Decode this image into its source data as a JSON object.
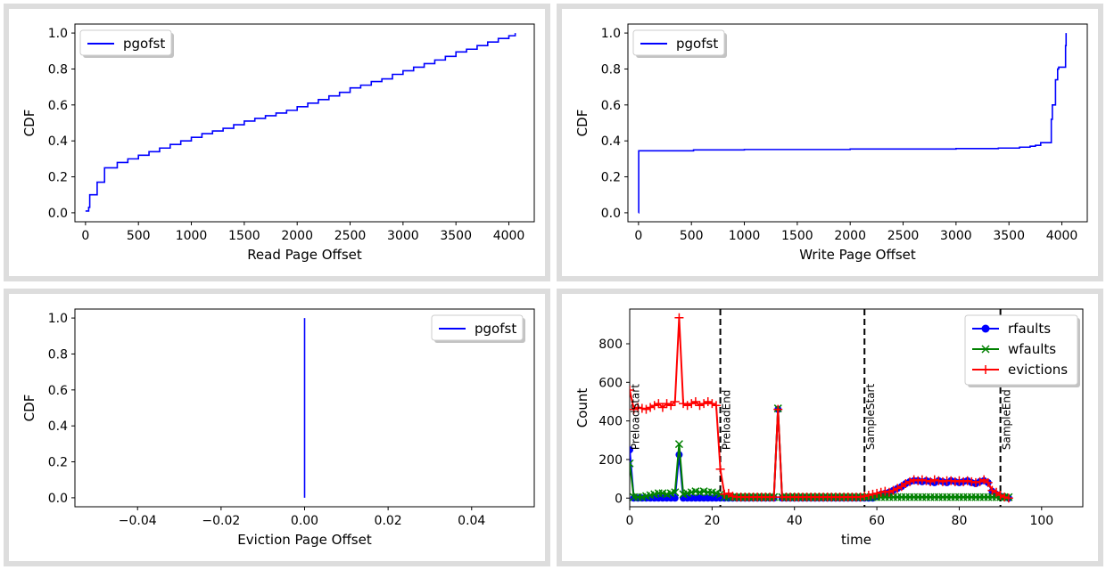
{
  "chart_data": [
    {
      "type": "line",
      "xlabel": "Read Page Offset",
      "ylabel": "CDF",
      "xlim": [
        -100,
        4240
      ],
      "ylim": [
        -0.05,
        1.05
      ],
      "xticks": [
        0,
        500,
        1000,
        1500,
        2000,
        2500,
        3000,
        3500,
        4000
      ],
      "yticks": [
        0.0,
        0.2,
        0.4,
        0.6,
        0.8,
        1.0
      ],
      "grid": false,
      "legend_position": "top-left",
      "series": [
        {
          "name": "pgofst",
          "color": "#0000ff",
          "step": true,
          "x": [
            0,
            30,
            40,
            100,
            110,
            170,
            180,
            300,
            400,
            500,
            600,
            700,
            800,
            900,
            1000,
            1100,
            1200,
            1300,
            1400,
            1500,
            1600,
            1700,
            1800,
            1900,
            2000,
            2100,
            2200,
            2300,
            2400,
            2500,
            2600,
            2700,
            2800,
            2900,
            3000,
            3100,
            3200,
            3300,
            3400,
            3500,
            3600,
            3700,
            3800,
            3900,
            4000,
            4060
          ],
          "y": [
            0.01,
            0.03,
            0.1,
            0.1,
            0.17,
            0.17,
            0.25,
            0.28,
            0.3,
            0.32,
            0.34,
            0.36,
            0.38,
            0.4,
            0.42,
            0.44,
            0.455,
            0.47,
            0.49,
            0.51,
            0.525,
            0.54,
            0.555,
            0.57,
            0.59,
            0.61,
            0.63,
            0.65,
            0.67,
            0.695,
            0.71,
            0.73,
            0.745,
            0.77,
            0.79,
            0.81,
            0.83,
            0.85,
            0.87,
            0.895,
            0.91,
            0.93,
            0.95,
            0.97,
            0.985,
            1.0
          ]
        }
      ]
    },
    {
      "type": "line",
      "xlabel": "Write Page Offset",
      "ylabel": "CDF",
      "xlim": [
        -100,
        4240
      ],
      "ylim": [
        -0.05,
        1.05
      ],
      "xticks": [
        0,
        500,
        1000,
        1500,
        2000,
        2500,
        3000,
        3500,
        4000
      ],
      "yticks": [
        0.0,
        0.2,
        0.4,
        0.6,
        0.8,
        1.0
      ],
      "grid": false,
      "legend_position": "top-left",
      "series": [
        {
          "name": "pgofst",
          "color": "#0000ff",
          "step": true,
          "x": [
            0,
            2,
            500,
            520,
            1000,
            2000,
            3000,
            3400,
            3600,
            3700,
            3750,
            3800,
            3880,
            3900,
            3910,
            3940,
            3960,
            3970,
            4030,
            4035,
            4040
          ],
          "y": [
            0.0,
            0.345,
            0.345,
            0.35,
            0.352,
            0.355,
            0.357,
            0.36,
            0.365,
            0.37,
            0.375,
            0.39,
            0.39,
            0.52,
            0.6,
            0.74,
            0.8,
            0.81,
            0.81,
            0.93,
            1.0
          ]
        }
      ]
    },
    {
      "type": "line",
      "xlabel": "Eviction Page Offset",
      "ylabel": "CDF",
      "xlim": [
        -0.055,
        0.055
      ],
      "ylim": [
        -0.05,
        1.05
      ],
      "xticks": [
        -0.04,
        -0.02,
        0.0,
        0.02,
        0.04
      ],
      "xtick_labels": [
        "−0.04",
        "−0.02",
        "0.00",
        "0.02",
        "0.04"
      ],
      "yticks": [
        0.0,
        0.2,
        0.4,
        0.6,
        0.8,
        1.0
      ],
      "grid": false,
      "legend_position": "top-right",
      "series": [
        {
          "name": "pgofst",
          "color": "#0000ff",
          "step": false,
          "x": [
            0,
            0
          ],
          "y": [
            0.0,
            1.0
          ]
        }
      ]
    },
    {
      "type": "line",
      "xlabel": "time",
      "ylabel": "Count",
      "xlim": [
        0,
        110
      ],
      "ylim": [
        -45,
        980
      ],
      "xticks": [
        0,
        20,
        40,
        60,
        80,
        100
      ],
      "yticks": [
        0,
        200,
        400,
        600,
        800
      ],
      "grid": false,
      "legend_position": "top-right",
      "series": [
        {
          "name": "rfaults",
          "color": "#0000ff",
          "marker": "o",
          "x": [
            0,
            1,
            2,
            3,
            4,
            5,
            6,
            7,
            8,
            9,
            10,
            11,
            12,
            13,
            14,
            15,
            16,
            17,
            18,
            19,
            20,
            21,
            22,
            23,
            24,
            25,
            26,
            27,
            28,
            29,
            30,
            31,
            32,
            33,
            34,
            35,
            36,
            37,
            38,
            39,
            40,
            41,
            42,
            43,
            44,
            45,
            46,
            47,
            48,
            49,
            50,
            51,
            52,
            53,
            54,
            55,
            56,
            57,
            58,
            59,
            60,
            61,
            62,
            63,
            64,
            65,
            66,
            67,
            68,
            69,
            70,
            71,
            72,
            73,
            74,
            75,
            76,
            77,
            78,
            79,
            80,
            81,
            82,
            83,
            84,
            85,
            86,
            87,
            88,
            89,
            90,
            91,
            92
          ],
          "y": [
            250,
            0,
            0,
            0,
            0,
            0,
            0,
            0,
            0,
            0,
            0,
            0,
            225,
            0,
            0,
            0,
            0,
            0,
            0,
            0,
            0,
            0,
            0,
            0,
            0,
            0,
            0,
            0,
            0,
            0,
            0,
            0,
            0,
            0,
            0,
            0,
            460,
            0,
            0,
            0,
            0,
            0,
            0,
            0,
            0,
            0,
            0,
            0,
            0,
            0,
            0,
            0,
            0,
            0,
            0,
            0,
            0,
            0,
            0,
            0,
            10,
            20,
            25,
            30,
            40,
            50,
            60,
            75,
            85,
            90,
            90,
            85,
            90,
            85,
            80,
            90,
            85,
            80,
            90,
            85,
            80,
            85,
            90,
            80,
            75,
            85,
            90,
            80,
            35,
            20,
            10,
            5,
            0
          ]
        },
        {
          "name": "wfaults",
          "color": "#008000",
          "marker": "x",
          "x": [
            0,
            1,
            2,
            3,
            4,
            5,
            6,
            7,
            8,
            9,
            10,
            11,
            12,
            13,
            14,
            15,
            16,
            17,
            18,
            19,
            20,
            21,
            22,
            23,
            24,
            25,
            26,
            27,
            28,
            29,
            30,
            31,
            32,
            33,
            34,
            35,
            36,
            37,
            38,
            39,
            40,
            41,
            42,
            43,
            44,
            45,
            46,
            47,
            48,
            49,
            50,
            51,
            52,
            53,
            54,
            55,
            56,
            57,
            58,
            59,
            60,
            61,
            62,
            63,
            64,
            65,
            66,
            67,
            68,
            69,
            70,
            71,
            72,
            73,
            74,
            75,
            76,
            77,
            78,
            79,
            80,
            81,
            82,
            83,
            84,
            85,
            86,
            87,
            88,
            89,
            90,
            91,
            92
          ],
          "y": [
            180,
            5,
            5,
            5,
            10,
            15,
            20,
            25,
            25,
            20,
            25,
            30,
            280,
            20,
            25,
            30,
            35,
            30,
            35,
            30,
            30,
            25,
            20,
            5,
            5,
            5,
            5,
            5,
            5,
            5,
            5,
            5,
            5,
            5,
            5,
            5,
            465,
            5,
            5,
            5,
            5,
            5,
            5,
            5,
            5,
            5,
            5,
            5,
            5,
            5,
            5,
            5,
            5,
            5,
            5,
            5,
            5,
            5,
            5,
            5,
            5,
            5,
            5,
            5,
            5,
            5,
            5,
            5,
            5,
            5,
            5,
            5,
            5,
            5,
            5,
            5,
            5,
            5,
            5,
            5,
            5,
            5,
            5,
            5,
            5,
            5,
            5,
            5,
            5,
            5,
            5,
            5,
            5
          ]
        },
        {
          "name": "evictions",
          "color": "#ff0000",
          "marker": "+",
          "x": [
            0,
            1,
            2,
            3,
            4,
            5,
            6,
            7,
            8,
            9,
            10,
            11,
            12,
            13,
            14,
            15,
            16,
            17,
            18,
            19,
            20,
            21,
            22,
            23,
            24,
            25,
            26,
            27,
            28,
            29,
            30,
            31,
            32,
            33,
            34,
            35,
            36,
            37,
            38,
            39,
            40,
            41,
            42,
            43,
            44,
            45,
            46,
            47,
            48,
            49,
            50,
            51,
            52,
            53,
            54,
            55,
            56,
            57,
            58,
            59,
            60,
            61,
            62,
            63,
            64,
            65,
            66,
            67,
            68,
            69,
            70,
            71,
            72,
            73,
            74,
            75,
            76,
            77,
            78,
            79,
            80,
            81,
            82,
            83,
            84,
            85,
            86,
            87,
            88,
            89,
            90,
            91,
            92
          ],
          "y": [
            560,
            460,
            470,
            465,
            460,
            470,
            480,
            490,
            470,
            490,
            480,
            500,
            935,
            490,
            480,
            490,
            500,
            480,
            490,
            500,
            490,
            480,
            150,
            20,
            25,
            10,
            5,
            5,
            5,
            5,
            5,
            5,
            5,
            5,
            5,
            5,
            460,
            5,
            5,
            5,
            5,
            5,
            5,
            5,
            5,
            5,
            5,
            5,
            5,
            5,
            5,
            5,
            5,
            5,
            5,
            5,
            5,
            10,
            15,
            20,
            25,
            30,
            35,
            30,
            40,
            50,
            60,
            75,
            85,
            95,
            90,
            95,
            90,
            85,
            95,
            90,
            85,
            90,
            90,
            85,
            90,
            85,
            90,
            85,
            80,
            85,
            95,
            80,
            40,
            30,
            15,
            5,
            0
          ]
        }
      ],
      "vlines": [
        {
          "x": 22,
          "label": "PreloadEnd"
        },
        {
          "x": 57,
          "label": "SampleStart"
        },
        {
          "x": 90,
          "label": "SampleEnd"
        }
      ],
      "annotations": [
        {
          "x": 0.3,
          "text": "PreloadStart"
        }
      ]
    }
  ]
}
